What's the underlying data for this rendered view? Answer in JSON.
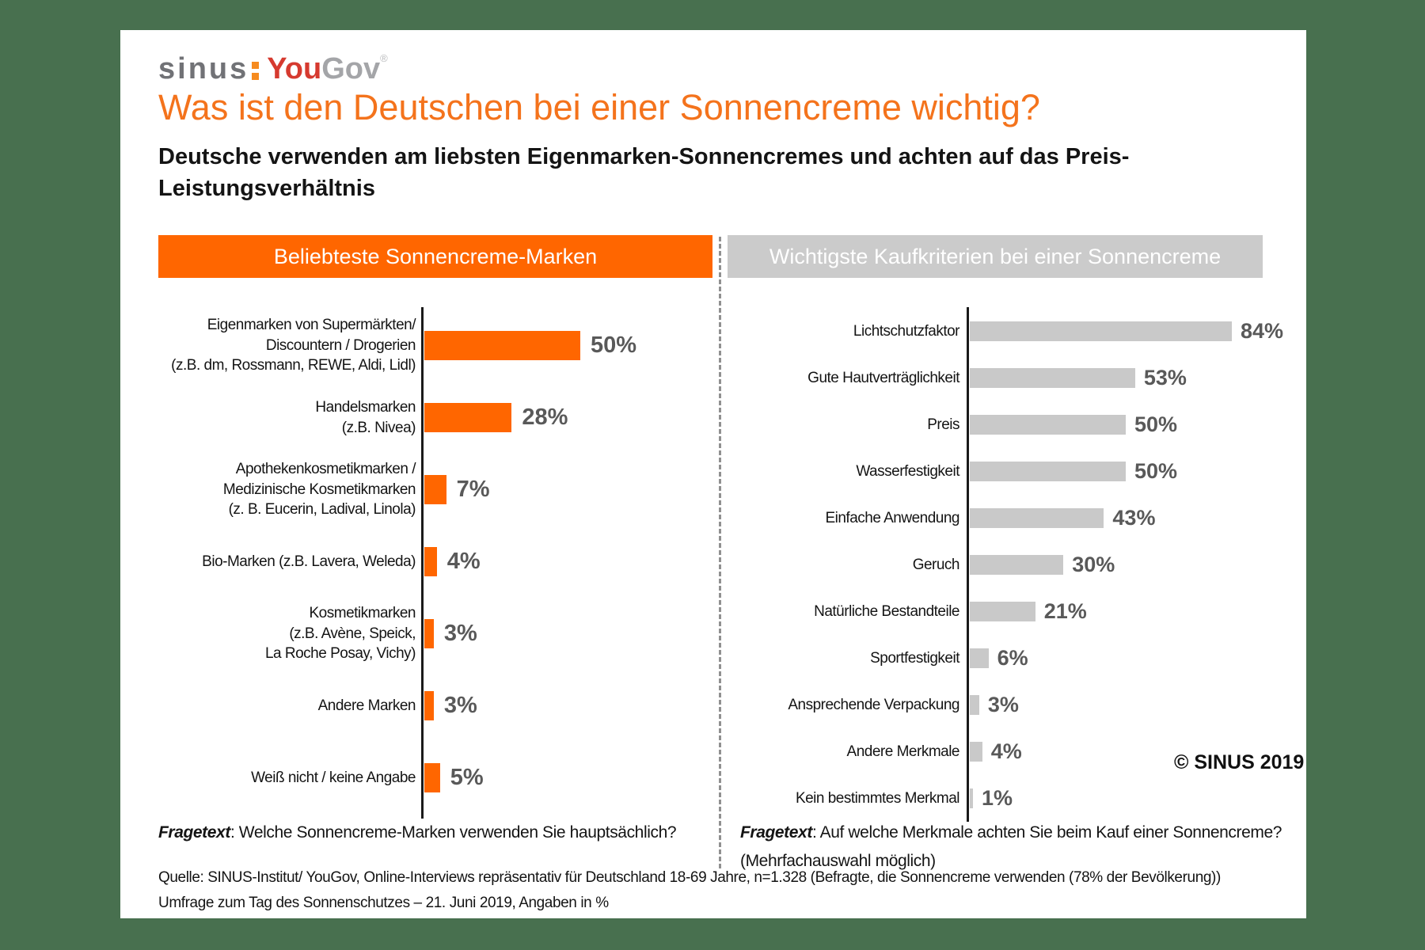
{
  "brand": {
    "sinus_text": "sinus",
    "you_text": "You",
    "gov_text": "Gov",
    "registered_mark": "®"
  },
  "title": "Was ist den Deutschen bei einer Sonnencreme wichtig?",
  "subtitle_line1": "Deutsche verwenden am liebsten Eigenmarken-Sonnencremes und achten auf das Preis-",
  "subtitle_line2": "Leistungsverhältnis",
  "copyright": "© SINUS 2019",
  "source_line1": "Quelle: SINUS-Institut/ YouGov, Online-Interviews repräsentativ für Deutschland 18-69 Jahre, n=1.328 (Befragte, die Sonnencreme verwenden (78% der Bevölkerung))",
  "source_line2": "Umfrage zum Tag des Sonnenschutzes – 21. Juni 2019, Angaben in %",
  "colors": {
    "page_background": "#48704F",
    "title_orange": "#F4731C",
    "bar_orange": "#FF6600",
    "bar_gray": "#C9C9C9",
    "header_gray": "#CBCBCB",
    "value_label_gray": "#595959"
  },
  "chart_data": [
    {
      "type": "bar",
      "orientation": "horizontal",
      "panel_title": "Beliebteste Sonnencreme-Marken",
      "unit": "%",
      "bar_color": "#FF6600",
      "xlim": [
        0,
        100
      ],
      "categories": [
        [
          "Eigenmarken von Supermärkten/",
          "Discountern / Drogerien",
          "(z.B. dm, Rossmann, REWE, Aldi, Lidl)"
        ],
        [
          "Handelsmarken",
          "(z.B. Nivea)"
        ],
        [
          "Apothekenkosmetikmarken /",
          "Medizinische Kosmetikmarken",
          "(z. B. Eucerin, Ladival, Linola)"
        ],
        [
          "Bio-Marken (z.B. Lavera, Weleda)"
        ],
        [
          "Kosmetikmarken",
          "(z.B. Avène, Speick,",
          "La Roche Posay, Vichy)"
        ],
        [
          "Andere Marken"
        ],
        [
          "Weiß nicht / keine Angabe"
        ]
      ],
      "values": [
        50,
        28,
        7,
        4,
        3,
        3,
        5
      ],
      "note": {
        "label": "Fragetext",
        "text": ": Welche Sonnencreme-Marken verwenden Sie hauptsächlich?"
      }
    },
    {
      "type": "bar",
      "orientation": "horizontal",
      "panel_title": "Wichtigste Kaufkriterien bei einer Sonnencreme",
      "unit": "%",
      "bar_color": "#C9C9C9",
      "xlim": [
        0,
        100
      ],
      "categories": [
        "Lichtschutzfaktor",
        "Gute Hautverträglichkeit",
        "Preis",
        "Wasserfestigkeit",
        "Einfache Anwendung",
        "Geruch",
        "Natürliche Bestandteile",
        "Sportfestigkeit",
        "Ansprechende Verpackung",
        "Andere Merkmale",
        "Kein bestimmtes Merkmal"
      ],
      "values": [
        84,
        53,
        50,
        50,
        43,
        30,
        21,
        6,
        3,
        4,
        1
      ],
      "note": {
        "label": "Fragetext",
        "text": ": Auf welche Merkmale achten Sie beim Kauf einer Sonnencreme?",
        "text_line2": "(Mehrfachauswahl möglich)"
      }
    }
  ]
}
